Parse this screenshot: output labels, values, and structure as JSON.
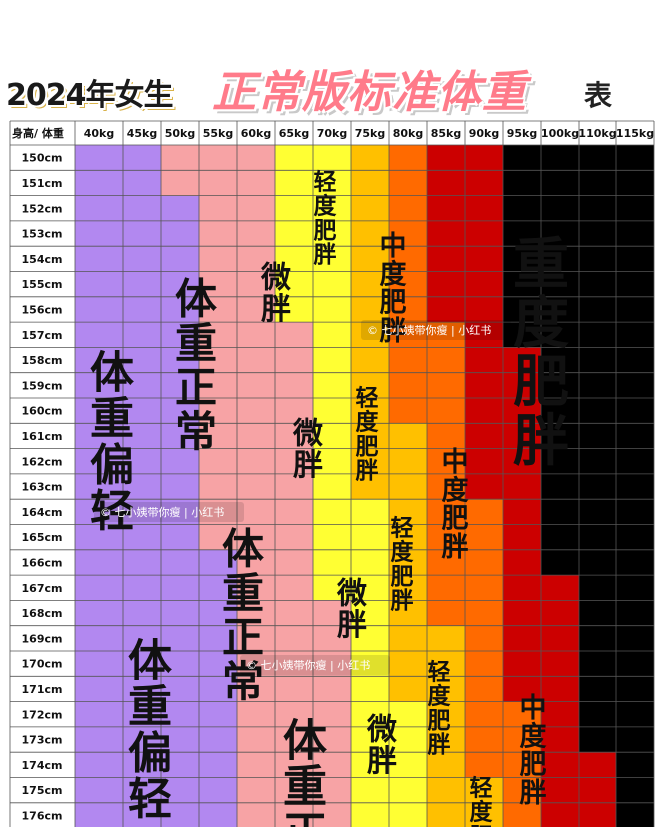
{
  "title": {
    "year_part": "2024年女生",
    "main_part": "正常版标准体重",
    "suffix": "表"
  },
  "chart_data": {
    "type": "table",
    "corner_label": "身高/ 体重",
    "columns": [
      "40kg",
      "45kg",
      "50kg",
      "55kg",
      "60kg",
      "65kg",
      "70kg",
      "75kg",
      "80kg",
      "85kg",
      "90kg",
      "95kg",
      "100kg",
      "110kg",
      "115kg"
    ],
    "rows": [
      "150cm",
      "151cm",
      "152cm",
      "153cm",
      "154cm",
      "155cm",
      "156cm",
      "157cm",
      "158cm",
      "159cm",
      "160cm",
      "161cm",
      "162cm",
      "163cm",
      "164cm",
      "165cm",
      "166cm",
      "167cm",
      "168cm",
      "169cm",
      "170cm",
      "171cm",
      "172cm",
      "173cm",
      "174cm",
      "175cm",
      "176cm"
    ],
    "categories": {
      "偏轻": "#b288f0",
      "正常": "#f7a3a5",
      "微胖": "#ffff33",
      "轻度": "#ffc000",
      "中度": "#ff6a00",
      "重度": "#cc0000"
    },
    "boundaries": [
      [
        2,
        5,
        7,
        8,
        9,
        11
      ],
      [
        2,
        5,
        7,
        8,
        9,
        11
      ],
      [
        3,
        5,
        7,
        8,
        9,
        11
      ],
      [
        3,
        5,
        7,
        8,
        9,
        11
      ],
      [
        3,
        5,
        7,
        8,
        9,
        11
      ],
      [
        3,
        5,
        7,
        8,
        9,
        11
      ],
      [
        3,
        5,
        7,
        8,
        9,
        11
      ],
      [
        3,
        6,
        7,
        8,
        10,
        11
      ],
      [
        3,
        6,
        7,
        8,
        10,
        12
      ],
      [
        3,
        6,
        7,
        8,
        10,
        12
      ],
      [
        3,
        6,
        7,
        8,
        10,
        12
      ],
      [
        3,
        6,
        7,
        9,
        10,
        12
      ],
      [
        3,
        6,
        7,
        9,
        10,
        12
      ],
      [
        3,
        6,
        7,
        9,
        10,
        12
      ],
      [
        3,
        6,
        8,
        9,
        11,
        12
      ],
      [
        3,
        6,
        8,
        9,
        11,
        12
      ],
      [
        4,
        6,
        8,
        9,
        11,
        12
      ],
      [
        4,
        6,
        8,
        9,
        11,
        13
      ],
      [
        4,
        7,
        8,
        9,
        11,
        13
      ],
      [
        4,
        7,
        8,
        10,
        11,
        13
      ],
      [
        4,
        7,
        8,
        10,
        11,
        13
      ],
      [
        4,
        7,
        8,
        10,
        11,
        13
      ],
      [
        4,
        7,
        9,
        10,
        12,
        13
      ],
      [
        4,
        7,
        9,
        10,
        12,
        13
      ],
      [
        4,
        7,
        9,
        10,
        12,
        14
      ],
      [
        4,
        7,
        9,
        11,
        12,
        14
      ],
      [
        4,
        7,
        9,
        11,
        12,
        14
      ]
    ],
    "labels": [
      {
        "text": "体重偏轻",
        "key": "偏轻"
      },
      {
        "text": "体重偏轻",
        "key": "偏轻"
      },
      {
        "text": "体重正常",
        "key": "正常"
      },
      {
        "text": "体重正常",
        "key": "正常"
      },
      {
        "text": "体重正",
        "key": "正常"
      },
      {
        "text": "微胖",
        "key": "微胖"
      },
      {
        "text": "微胖",
        "key": "微胖"
      },
      {
        "text": "微胖",
        "key": "微胖"
      },
      {
        "text": "微胖",
        "key": "微胖"
      },
      {
        "text": "轻度肥胖",
        "key": "轻度"
      },
      {
        "text": "轻度肥胖",
        "key": "轻度"
      },
      {
        "text": "轻度肥胖",
        "key": "轻度"
      },
      {
        "text": "轻度肥胖",
        "key": "轻度"
      },
      {
        "text": "轻度肥",
        "key": "轻度"
      },
      {
        "text": "中度肥胖",
        "key": "中度"
      },
      {
        "text": "中度肥胖",
        "key": "中度"
      },
      {
        "text": "中度肥胖",
        "key": "中度"
      },
      {
        "text": "重度肥胖",
        "key": "重度"
      }
    ]
  },
  "watermarks": [
    {
      "text": "© 七小姨带你瘦 | 小红书"
    },
    {
      "text": "© 七小姨带你瘦 | 小红书"
    },
    {
      "text": "© 七小姨带你瘦 | 小红书"
    }
  ]
}
